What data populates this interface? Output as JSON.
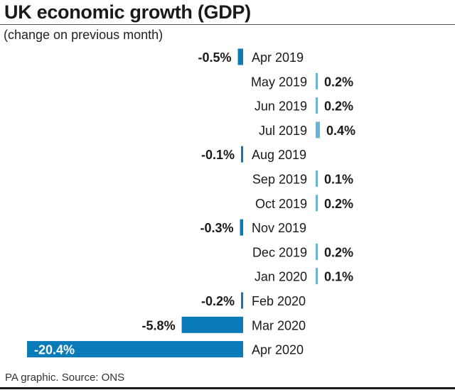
{
  "chart_data": {
    "type": "bar",
    "orientation": "horizontal",
    "title": "UK economic growth (GDP)",
    "subtitle": "(change on previous month)",
    "xlabel": "",
    "ylabel": "",
    "unit": "%",
    "categories": [
      "Apr 2019",
      "May 2019",
      "Jun 2019",
      "Jul 2019",
      "Aug 2019",
      "Sep 2019",
      "Oct 2019",
      "Nov 2019",
      "Dec 2019",
      "Jan 2020",
      "Feb 2020",
      "Mar 2020",
      "Apr 2020"
    ],
    "values": [
      -0.5,
      0.2,
      0.2,
      0.4,
      -0.1,
      0.1,
      0.2,
      -0.3,
      0.2,
      0.1,
      -0.2,
      -5.8,
      -20.4
    ],
    "value_labels": [
      "-0.5%",
      "0.2%",
      "0.2%",
      "0.4%",
      "-0.1%",
      "0.1%",
      "0.2%",
      "-0.3%",
      "0.2%",
      "0.1%",
      "-0.2%",
      "-5.8%",
      "-20.4%"
    ],
    "grid": false,
    "legend": "none",
    "colors": {
      "negative": "#0a7ab8",
      "positive": "#6bb3d1",
      "text": "#1a1a1a",
      "label_on_bar": "#ffffff"
    }
  },
  "footer": {
    "source": "PA graphic. Source: ONS"
  }
}
